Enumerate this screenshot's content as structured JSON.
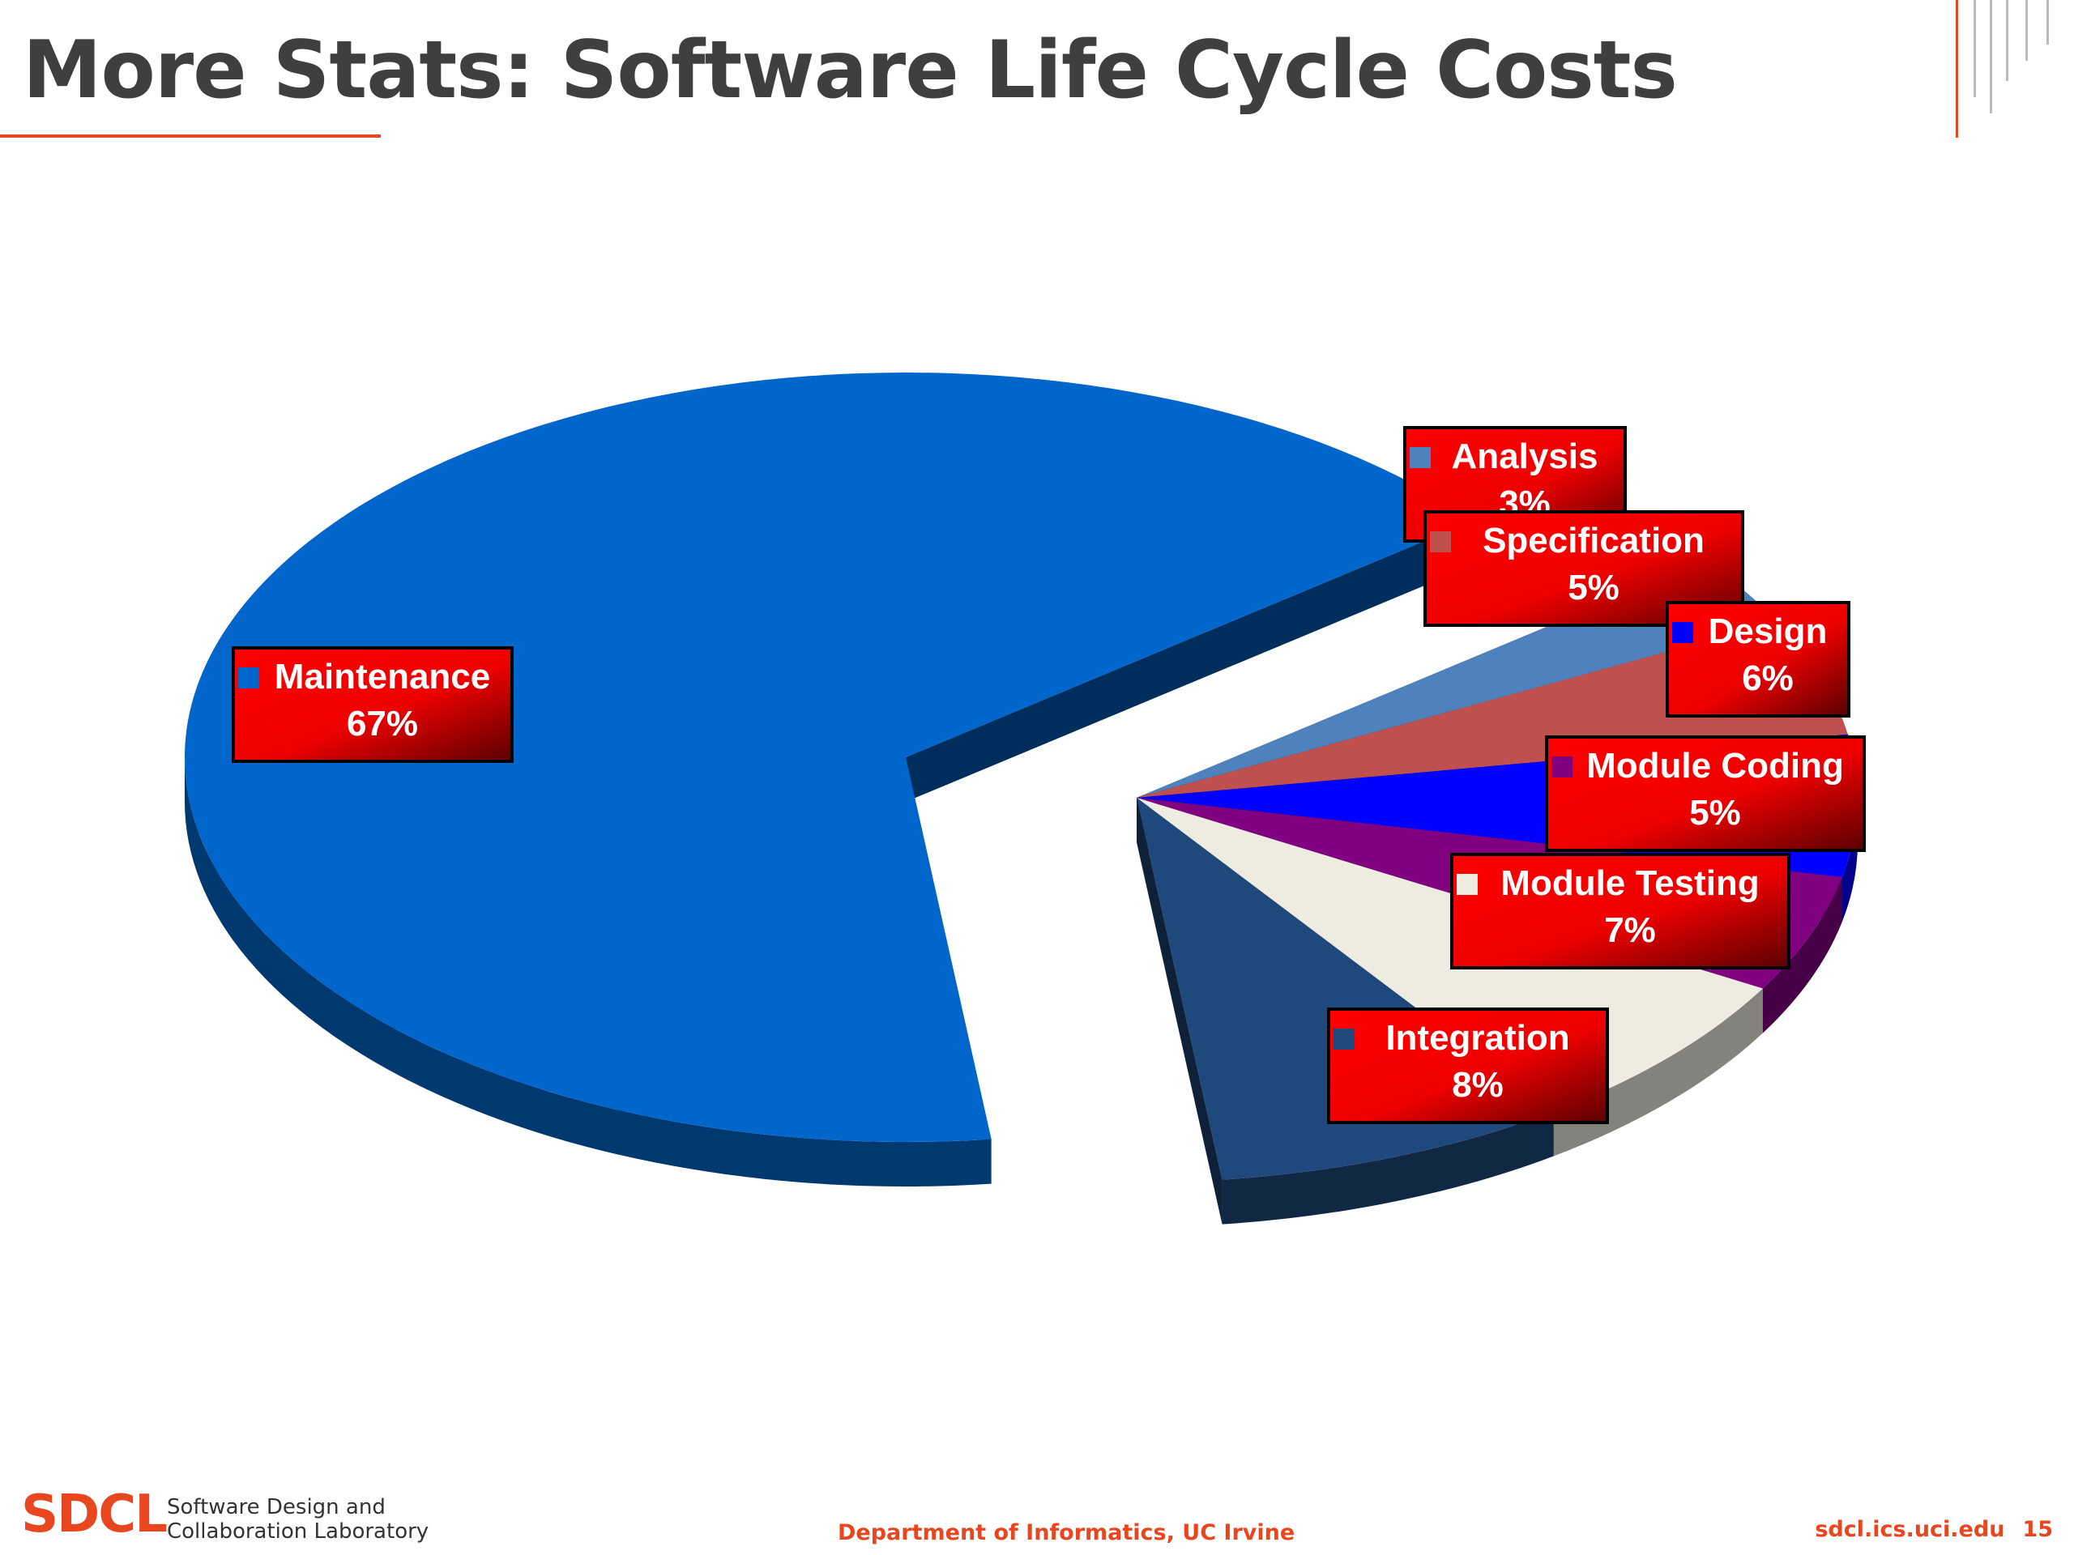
{
  "slide": {
    "title": "More Stats: Software Life Cycle Costs",
    "footer": {
      "logo": "SDCL",
      "lab_line1": "Software Design and",
      "lab_line2": "Collaboration Laboratory",
      "department": "Department of Informatics, UC Irvine",
      "site": "sdcl.ics.uci.edu",
      "page_number": "15"
    },
    "colors": {
      "accent": "#e8461f",
      "title_text": "#3f3f3f",
      "label_box": "#ff0000"
    }
  },
  "chart_data": {
    "type": "pie",
    "style": "3d-exploded",
    "title": "",
    "legend": "none",
    "data_labels": "category-name-and-percent",
    "slices": [
      {
        "label": "Analysis",
        "value": 3,
        "display": "3%",
        "color": "#4f81bd"
      },
      {
        "label": "Specification",
        "value": 5,
        "display": "5%",
        "color": "#c0504d"
      },
      {
        "label": "Design",
        "value": 6,
        "display": "6%",
        "color": "#0000ff"
      },
      {
        "label": "Module Coding",
        "value": 5,
        "display": "5%",
        "color": "#800080"
      },
      {
        "label": "Module Testing",
        "value": 7,
        "display": "7%",
        "color": "#eeece1"
      },
      {
        "label": "Integration",
        "value": 8,
        "display": "8%",
        "color": "#1f497d"
      },
      {
        "label": "Maintenance",
        "value": 67,
        "display": "67%",
        "color": "#0066cc"
      }
    ]
  }
}
